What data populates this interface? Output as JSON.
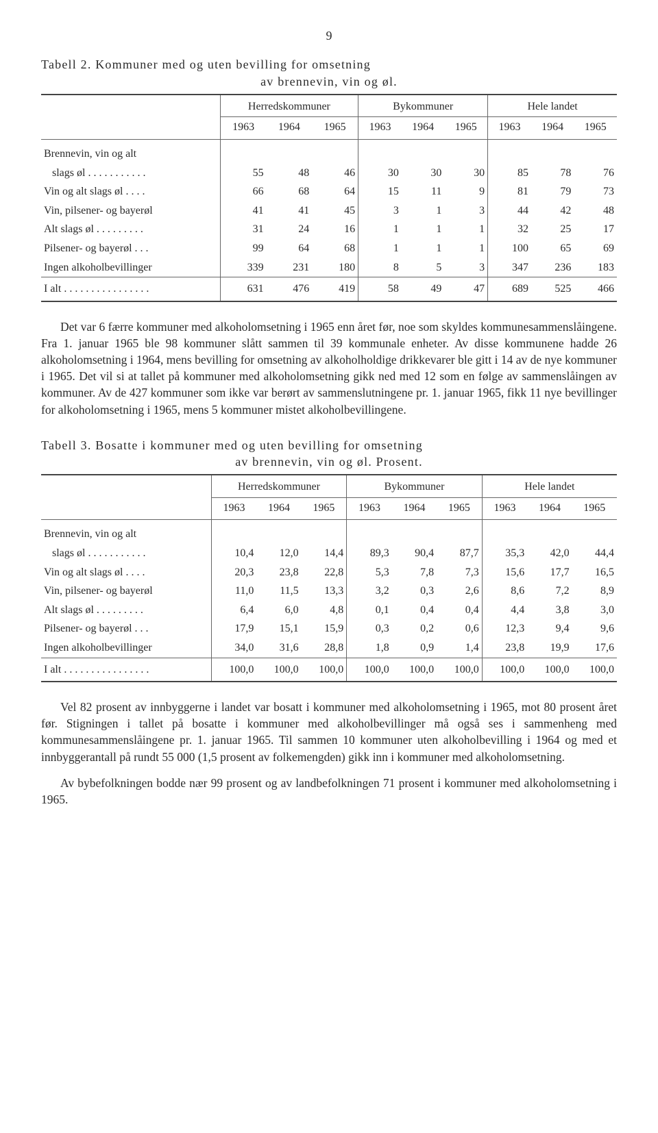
{
  "page_number": "9",
  "table2": {
    "caption_line1": "Tabell 2. Kommuner med og uten bevilling for omsetning",
    "caption_line2": "av brennevin, vin og øl.",
    "groups": [
      "Herredskommuner",
      "Bykommuner",
      "Hele landet"
    ],
    "years": [
      "1963",
      "1964",
      "1965",
      "1963",
      "1964",
      "1965",
      "1963",
      "1964",
      "1965"
    ],
    "rows": [
      {
        "label": "Brennevin, vin og alt",
        "sub": true
      },
      {
        "label": "   slags øl . . . . . . . . . . .",
        "vals": [
          "55",
          "48",
          "46",
          "30",
          "30",
          "30",
          "85",
          "78",
          "76"
        ]
      },
      {
        "label": "Vin og alt slags øl  . . . .",
        "vals": [
          "66",
          "68",
          "64",
          "15",
          "11",
          "9",
          "81",
          "79",
          "73"
        ]
      },
      {
        "label": "Vin, pilsener- og bayerøl",
        "vals": [
          "41",
          "41",
          "45",
          "3",
          "1",
          "3",
          "44",
          "42",
          "48"
        ]
      },
      {
        "label": "Alt slags øl  . . . . . . . . .",
        "vals": [
          "31",
          "24",
          "16",
          "1",
          "1",
          "1",
          "32",
          "25",
          "17"
        ]
      },
      {
        "label": "Pilsener- og bayerøl . . .",
        "vals": [
          "99",
          "64",
          "68",
          "1",
          "1",
          "1",
          "100",
          "65",
          "69"
        ]
      },
      {
        "label": "Ingen alkoholbevillinger",
        "vals": [
          "339",
          "231",
          "180",
          "8",
          "5",
          "3",
          "347",
          "236",
          "183"
        ]
      }
    ],
    "total": {
      "label": "I alt  . . . . . . . . . . . . . . . .",
      "vals": [
        "631",
        "476",
        "419",
        "58",
        "49",
        "47",
        "689",
        "525",
        "466"
      ]
    }
  },
  "para1": "Det var 6 færre kommuner med alkoholomsetning i 1965 enn året før, noe som skyldes kommunesammenslåingene. Fra 1. januar 1965 ble 98 kommuner slått sammen til 39 kommunale enheter. Av disse kommunene hadde 26 alkoholomsetning i 1964, mens bevilling for omsetning av alkoholholdige drikkevarer ble gitt i 14 av de nye kommuner i 1965. Det vil si at tallet på kommuner med alkoholomsetning gikk ned med 12 som en følge av sammenslåingen av kommuner. Av de 427 kommuner som ikke var berørt av sammenslutningene pr. 1. januar 1965, fikk 11 nye bevillinger for alkoholomsetning i 1965, mens 5 kommuner mistet alkoholbevillingene.",
  "table3": {
    "caption_line1": "Tabell 3. Bosatte i kommuner med og uten bevilling for omsetning",
    "caption_line2": "av brennevin, vin og øl. Prosent.",
    "groups": [
      "Herredskommuner",
      "Bykommuner",
      "Hele landet"
    ],
    "years": [
      "1963",
      "1964",
      "1965",
      "1963",
      "1964",
      "1965",
      "1963",
      "1964",
      "1965"
    ],
    "rows": [
      {
        "label": "Brennevin, vin og alt",
        "sub": true
      },
      {
        "label": "   slags øl . . . . . . . . . . .",
        "vals": [
          "10,4",
          "12,0",
          "14,4",
          "89,3",
          "90,4",
          "87,7",
          "35,3",
          "42,0",
          "44,4"
        ]
      },
      {
        "label": "Vin og alt slags øl  . . . .",
        "vals": [
          "20,3",
          "23,8",
          "22,8",
          "5,3",
          "7,8",
          "7,3",
          "15,6",
          "17,7",
          "16,5"
        ]
      },
      {
        "label": "Vin, pilsener- og bayerøl",
        "vals": [
          "11,0",
          "11,5",
          "13,3",
          "3,2",
          "0,3",
          "2,6",
          "8,6",
          "7,2",
          "8,9"
        ]
      },
      {
        "label": "Alt slags øl  . . . . . . . . .",
        "vals": [
          "6,4",
          "6,0",
          "4,8",
          "0,1",
          "0,4",
          "0,4",
          "4,4",
          "3,8",
          "3,0"
        ]
      },
      {
        "label": "Pilsener- og bayerøl . . .",
        "vals": [
          "17,9",
          "15,1",
          "15,9",
          "0,3",
          "0,2",
          "0,6",
          "12,3",
          "9,4",
          "9,6"
        ]
      },
      {
        "label": "Ingen alkoholbevillinger",
        "vals": [
          "34,0",
          "31,6",
          "28,8",
          "1,8",
          "0,9",
          "1,4",
          "23,8",
          "19,9",
          "17,6"
        ]
      }
    ],
    "total": {
      "label": "I alt  . . . . . . . . . . . . . . . .",
      "vals": [
        "100,0",
        "100,0",
        "100,0",
        "100,0",
        "100,0",
        "100,0",
        "100,0",
        "100,0",
        "100,0"
      ]
    }
  },
  "para2": "Vel 82 prosent av innbyggerne i landet var bosatt i kommuner med alkoholomsetning i 1965, mot 80 prosent året før. Stigningen i tallet på bosatte i kommuner med alkoholbevillinger må også ses i sammenheng med kommunesammenslåingene pr. 1. januar 1965. Til sammen 10 kommuner uten alkoholbevilling i 1964 og med et innbyggerantall på rundt 55 000 (1,5 prosent av folkemengden) gikk inn i kommuner med alkoholomsetning.",
  "para3": "Av bybefolkningen bodde nær 99 prosent og av landbefolkningen 71 prosent i kommuner med alkoholomsetning i 1965."
}
